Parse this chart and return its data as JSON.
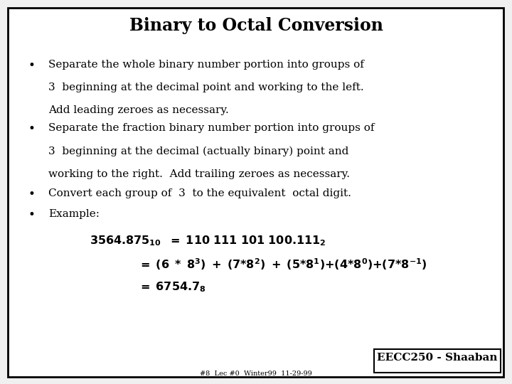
{
  "title": "Binary to Octal Conversion",
  "bg_color": "#f0f0f0",
  "border_color": "#000000",
  "text_color": "#000000",
  "bullet1_line1": "Separate the whole binary number portion into groups of",
  "bullet1_line2": "3  beginning at the decimal point and working to the left.",
  "bullet1_line3": "Add leading zeroes as necessary.",
  "bullet2_line1": "Separate the fraction binary number portion into groups of",
  "bullet2_line2": "3  beginning at the decimal (actually binary) point and",
  "bullet2_line3": "working to the right.  Add trailing zeroes as necessary.",
  "bullet3": "Convert each group of  3  to the equivalent  octal digit.",
  "bullet4": "Example:",
  "footer_label": "EECC250 - Shaaban",
  "footer_sub": "#8  Lec #0  Winter99  11-29-99"
}
